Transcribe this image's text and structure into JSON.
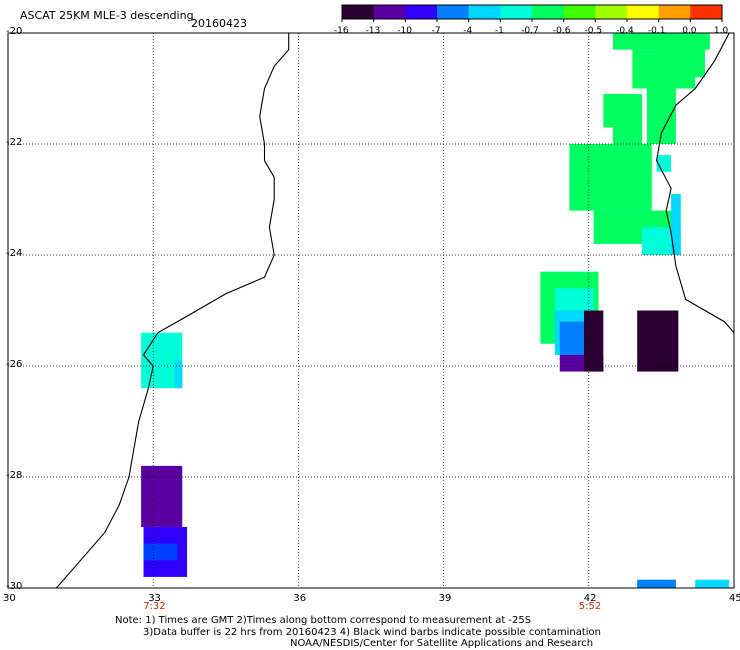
{
  "header": {
    "title": "ASCAT 25KM MLE-3 descending",
    "date": "20160423"
  },
  "colorbar": {
    "ticks": [
      "-16",
      "-13",
      "-10",
      "-7",
      "-4",
      "-1",
      "-0.7",
      "-0.6",
      "-0.5",
      "-0.4",
      "-0.1",
      "0.0",
      "1.0"
    ],
    "colors": [
      "#2a0030",
      "#5a00a0",
      "#3000ff",
      "#0080ff",
      "#00d8ff",
      "#00ffd8",
      "#00ff60",
      "#40ff00",
      "#a0ff00",
      "#ffff00",
      "#ffa000",
      "#ff3000"
    ]
  },
  "axes": {
    "lon_labels": [
      "30",
      "33",
      "36",
      "39",
      "42",
      "45"
    ],
    "lat_labels": [
      "-20",
      "-22",
      "-24",
      "-26",
      "-28",
      "-30"
    ],
    "time_labels": [
      {
        "lon": 33,
        "text": "7:32"
      },
      {
        "lon": 42,
        "text": "5:52"
      }
    ]
  },
  "map_extent": {
    "lon_min": 30,
    "lon_max": 45,
    "lat_min": -30,
    "lat_max": -20
  },
  "notes": {
    "line1": "Note: 1) Times are GMT 2)Times along bottom correspond to measurement at -25S",
    "line2": "3)Data buffer is 22 hrs from 20160423 4) Black wind barbs indicate possible contamination",
    "line3": "NOAA/NESDIS/Center for Satellite Applications and Research"
  },
  "swaths": [
    {
      "lon0": 32.75,
      "lon1": 33.6,
      "lat0": -26.4,
      "lat1": -25.4,
      "color": "#00ffd8"
    },
    {
      "lon0": 33.45,
      "lon1": 33.6,
      "lat0": -26.4,
      "lat1": -25.9,
      "color": "#00d8ff"
    },
    {
      "lon0": 32.75,
      "lon1": 33.6,
      "lat0": -28.9,
      "lat1": -27.8,
      "color": "#5a00a0"
    },
    {
      "lon0": 32.8,
      "lon1": 33.7,
      "lat0": -29.8,
      "lat1": -28.9,
      "color": "#3000ff"
    },
    {
      "lon0": 32.8,
      "lon1": 33.5,
      "lat0": -29.5,
      "lat1": -29.2,
      "color": "#0040ff"
    },
    {
      "lon0": 42.5,
      "lon1": 43.1,
      "lat0": -22.6,
      "lat1": -21.1,
      "color": "#00ff60"
    },
    {
      "lon0": 42.3,
      "lon1": 43.0,
      "lat0": -21.7,
      "lat1": -21.1,
      "color": "#00ff60"
    },
    {
      "lon0": 42.9,
      "lon1": 44.2,
      "lat0": -21.0,
      "lat1": -20.3,
      "color": "#00ff60"
    },
    {
      "lon0": 42.5,
      "lon1": 44.5,
      "lat0": -20.3,
      "lat1": -20.0,
      "color": "#00ff60"
    },
    {
      "lon0": 41.6,
      "lon1": 43.3,
      "lat0": -23.2,
      "lat1": -22.0,
      "color": "#00ff60"
    },
    {
      "lon0": 42.1,
      "lon1": 43.8,
      "lat0": -23.8,
      "lat1": -23.2,
      "color": "#00ff60"
    },
    {
      "lon0": 43.1,
      "lon1": 43.9,
      "lat0": -24.0,
      "lat1": -23.5,
      "color": "#00ffd8"
    },
    {
      "lon0": 43.7,
      "lon1": 43.9,
      "lat0": -24.0,
      "lat1": -22.9,
      "color": "#00d8ff"
    },
    {
      "lon0": 43.4,
      "lon1": 43.7,
      "lat0": -22.5,
      "lat1": -22.2,
      "color": "#00ffd8"
    },
    {
      "lon0": 43.5,
      "lon1": 44.4,
      "lat0": -20.8,
      "lat1": -20.0,
      "color": "#00ff60"
    },
    {
      "lon0": 43.2,
      "lon1": 43.8,
      "lat0": -22.0,
      "lat1": -20.8,
      "color": "#00ff60"
    },
    {
      "lon0": 41.0,
      "lon1": 42.2,
      "lat0": -25.6,
      "lat1": -24.3,
      "color": "#00ff60"
    },
    {
      "lon0": 41.3,
      "lon1": 42.1,
      "lat0": -25.5,
      "lat1": -24.6,
      "color": "#00ffd8"
    },
    {
      "lon0": 41.3,
      "lon1": 42.1,
      "lat0": -25.8,
      "lat1": -25.0,
      "color": "#00d8ff"
    },
    {
      "lon0": 41.4,
      "lon1": 41.9,
      "lat0": -25.8,
      "lat1": -25.2,
      "color": "#0080ff"
    },
    {
      "lon0": 41.4,
      "lon1": 42.3,
      "lat0": -26.1,
      "lat1": -25.8,
      "color": "#5a00a0"
    },
    {
      "lon0": 41.9,
      "lon1": 42.3,
      "lat0": -26.1,
      "lat1": -25.0,
      "color": "#2a0030"
    },
    {
      "lon0": 43.0,
      "lon1": 43.85,
      "lat0": -26.1,
      "lat1": -25.0,
      "color": "#2a0030"
    },
    {
      "lon0": 43.0,
      "lon1": 43.8,
      "lat0": -30.0,
      "lat1": -29.85,
      "color": "#0080ff"
    },
    {
      "lon0": 44.2,
      "lon1": 44.9,
      "lat0": -30.0,
      "lat1": -29.85,
      "color": "#00d8ff"
    }
  ],
  "coastlines": [
    {
      "name": "mozambique-coast",
      "points": [
        [
          35.8,
          -20.0
        ],
        [
          35.8,
          -20.3
        ],
        [
          35.5,
          -20.6
        ],
        [
          35.3,
          -21.0
        ],
        [
          35.2,
          -21.5
        ],
        [
          35.3,
          -22.0
        ],
        [
          35.3,
          -22.3
        ],
        [
          35.5,
          -22.6
        ],
        [
          35.5,
          -23.0
        ],
        [
          35.4,
          -23.5
        ],
        [
          35.5,
          -24.0
        ],
        [
          35.3,
          -24.4
        ],
        [
          34.5,
          -24.7
        ],
        [
          33.7,
          -25.1
        ],
        [
          33.1,
          -25.4
        ],
        [
          32.8,
          -25.8
        ],
        [
          33.0,
          -26.0
        ],
        [
          32.9,
          -26.4
        ],
        [
          32.7,
          -27.0
        ],
        [
          32.6,
          -27.5
        ],
        [
          32.5,
          -28.0
        ],
        [
          32.3,
          -28.5
        ],
        [
          32.0,
          -29.0
        ],
        [
          31.5,
          -29.5
        ],
        [
          31.0,
          -30.0
        ]
      ]
    },
    {
      "name": "madagascar-coast",
      "points": [
        [
          44.9,
          -20.0
        ],
        [
          44.6,
          -20.5
        ],
        [
          44.2,
          -21.0
        ],
        [
          43.8,
          -21.3
        ],
        [
          43.5,
          -21.8
        ],
        [
          43.4,
          -22.3
        ],
        [
          43.7,
          -22.8
        ],
        [
          43.6,
          -23.2
        ],
        [
          43.7,
          -23.6
        ],
        [
          43.8,
          -24.2
        ],
        [
          44.0,
          -24.8
        ],
        [
          44.4,
          -25.0
        ],
        [
          44.8,
          -25.2
        ],
        [
          45.0,
          -25.4
        ]
      ]
    }
  ]
}
